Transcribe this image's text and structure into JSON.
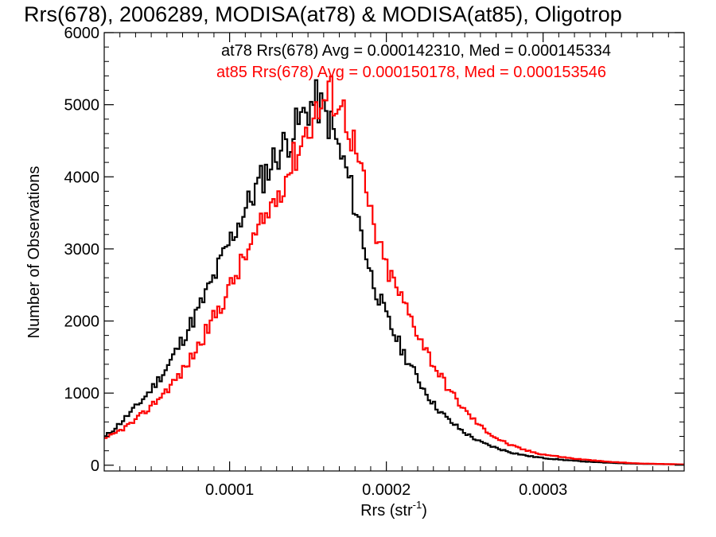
{
  "chart_data": {
    "type": "line",
    "title": "Rrs(678), 2006289, MODISA(at78) & MODISA(at85), Oligotrop",
    "xlabel": "Rrs (str",
    "xlabel_sup": "-1",
    "xlabel_close": ")",
    "ylabel": "Number of Observations",
    "xlim": [
      2e-05,
      0.00039
    ],
    "ylim": [
      -80,
      6000
    ],
    "x_ticks": [
      0.0001,
      0.0002,
      0.0003
    ],
    "x_tick_labels": [
      "0.0001",
      "0.0002",
      "0.0003"
    ],
    "y_ticks": [
      0,
      1000,
      2000,
      3000,
      4000,
      5000,
      6000
    ],
    "y_tick_labels": [
      "0",
      "1000",
      "2000",
      "3000",
      "4000",
      "5000",
      "6000"
    ],
    "step_style": "histogram",
    "series": [
      {
        "name": "at78",
        "color": "#000000",
        "legend": "at78 Rrs(678) Avg = 0.000142310, Med = 0.000145334",
        "x": [
          2e-05,
          3e-05,
          4e-05,
          5e-05,
          6e-05,
          7e-05,
          8e-05,
          9e-05,
          0.0001,
          0.00011,
          0.00012,
          0.00013,
          0.00014,
          0.00015,
          0.000155,
          0.00016,
          0.000165,
          0.00017,
          0.000175,
          0.00018,
          0.000185,
          0.00019,
          0.000195,
          0.0002,
          0.00021,
          0.00022,
          0.00023,
          0.00024,
          0.00025,
          0.00026,
          0.00027,
          0.00028,
          0.00029,
          0.0003,
          0.00032,
          0.00034,
          0.00036,
          0.00039
        ],
        "y": [
          380,
          580,
          800,
          1050,
          1350,
          1750,
          2150,
          2600,
          3100,
          3550,
          3950,
          4300,
          4600,
          4950,
          5050,
          4900,
          4700,
          4350,
          4050,
          3600,
          3150,
          2650,
          2350,
          2050,
          1600,
          1200,
          850,
          620,
          450,
          320,
          240,
          175,
          130,
          100,
          60,
          35,
          20,
          10
        ]
      },
      {
        "name": "at85",
        "color": "#ff0000",
        "legend": "at85 Rrs(678) Avg = 0.000150178, Med = 0.000153546",
        "x": [
          2e-05,
          3e-05,
          4e-05,
          5e-05,
          6e-05,
          7e-05,
          8e-05,
          9e-05,
          0.0001,
          0.00011,
          0.00012,
          0.00013,
          0.00014,
          0.00015,
          0.00016,
          0.000165,
          0.00017,
          0.000175,
          0.00018,
          0.000185,
          0.00019,
          0.000195,
          0.0002,
          0.00021,
          0.00022,
          0.00023,
          0.00024,
          0.00025,
          0.00026,
          0.00027,
          0.00028,
          0.00029,
          0.0003,
          0.00032,
          0.00034,
          0.00036,
          0.00039
        ],
        "y": [
          350,
          480,
          620,
          820,
          1050,
          1300,
          1650,
          2050,
          2450,
          2900,
          3300,
          3750,
          4200,
          4700,
          5050,
          5150,
          5050,
          4800,
          4400,
          3950,
          3500,
          3050,
          2750,
          2300,
          1850,
          1400,
          1050,
          760,
          540,
          380,
          270,
          200,
          150,
          90,
          50,
          25,
          10
        ]
      }
    ]
  }
}
